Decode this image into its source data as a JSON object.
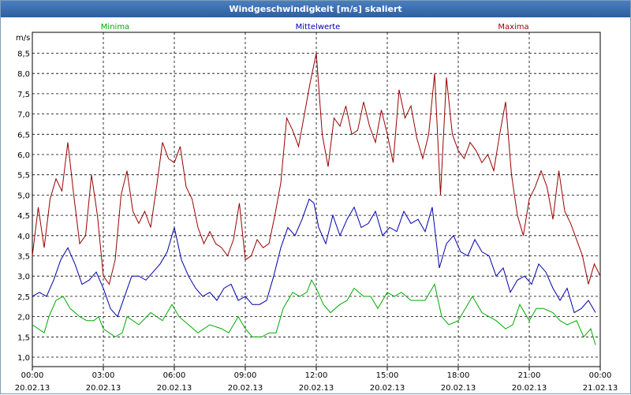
{
  "chart_data": {
    "type": "line",
    "title": "Windgeschwindigkeit [m/s] skaliert",
    "ylabel": "m/s",
    "ylim": [
      0.9,
      8.8
    ],
    "yticks": [
      "1,0",
      "1,5",
      "2,0",
      "2,5",
      "3,0",
      "3,5",
      "4,0",
      "4,5",
      "5,0",
      "5,5",
      "6,0",
      "6,5",
      "7,0",
      "7,5",
      "8,0",
      "8,5"
    ],
    "ytick_values": [
      1.0,
      1.5,
      2.0,
      2.5,
      3.0,
      3.5,
      4.0,
      4.5,
      5.0,
      5.5,
      6.0,
      6.5,
      7.0,
      7.5,
      8.0,
      8.5
    ],
    "xlim": [
      0,
      24
    ],
    "x_ticks": [
      {
        "time": "00:00",
        "date": "20.02.13"
      },
      {
        "time": "03:00",
        "date": "20.02.13"
      },
      {
        "time": "06:00",
        "date": "20.02.13"
      },
      {
        "time": "09:00",
        "date": "20.02.13"
      },
      {
        "time": "12:00",
        "date": "20.02.13"
      },
      {
        "time": "15:00",
        "date": "20.02.13"
      },
      {
        "time": "18:00",
        "date": "20.02.13"
      },
      {
        "time": "21:00",
        "date": "20.02.13"
      },
      {
        "time": "00:00",
        "date": "21.02.13"
      }
    ],
    "grid": true,
    "series": [
      {
        "name": "Minima",
        "color": "#00aa00",
        "x": [
          0.0,
          0.5,
          0.7,
          1.0,
          1.3,
          1.6,
          2.0,
          2.3,
          2.6,
          2.8,
          3.0,
          3.5,
          3.8,
          4.0,
          4.5,
          5.0,
          5.5,
          5.9,
          6.2,
          6.6,
          7.0,
          7.5,
          8.0,
          8.3,
          8.7,
          9.0,
          9.3,
          9.7,
          10.0,
          10.3,
          10.6,
          11.0,
          11.3,
          11.6,
          11.8,
          12.0,
          12.3,
          12.6,
          13.0,
          13.3,
          13.6,
          14.0,
          14.3,
          14.6,
          15.0,
          15.3,
          15.6,
          16.0,
          16.3,
          16.6,
          17.0,
          17.3,
          17.6,
          18.0,
          18.3,
          18.6,
          19.0,
          19.3,
          19.6,
          20.0,
          20.3,
          20.6,
          21.0,
          21.3,
          21.6,
          22.0,
          22.3,
          22.6,
          23.0,
          23.3,
          23.6,
          23.8
        ],
        "y": [
          1.8,
          1.6,
          2.0,
          2.4,
          2.5,
          2.2,
          2.0,
          1.9,
          1.9,
          2.0,
          1.7,
          1.5,
          1.6,
          2.0,
          1.8,
          2.1,
          1.9,
          2.3,
          2.0,
          1.8,
          1.6,
          1.8,
          1.7,
          1.6,
          2.0,
          1.7,
          1.5,
          1.5,
          1.6,
          1.6,
          2.2,
          2.6,
          2.5,
          2.6,
          2.9,
          2.7,
          2.3,
          2.1,
          2.3,
          2.4,
          2.7,
          2.5,
          2.5,
          2.2,
          2.6,
          2.5,
          2.6,
          2.4,
          2.4,
          2.4,
          2.8,
          2.0,
          1.8,
          1.9,
          2.2,
          2.5,
          2.1,
          2.0,
          1.9,
          1.7,
          1.8,
          2.3,
          1.9,
          2.2,
          2.2,
          2.1,
          1.9,
          1.8,
          1.9,
          1.5,
          1.7,
          1.3
        ]
      },
      {
        "name": "Mittelwerte",
        "color": "#0000aa",
        "x": [
          0.0,
          0.3,
          0.6,
          0.9,
          1.2,
          1.5,
          1.8,
          2.1,
          2.4,
          2.7,
          3.0,
          3.3,
          3.6,
          3.9,
          4.2,
          4.5,
          4.8,
          5.1,
          5.4,
          5.7,
          6.0,
          6.3,
          6.6,
          6.9,
          7.2,
          7.5,
          7.8,
          8.1,
          8.4,
          8.7,
          9.0,
          9.3,
          9.6,
          9.9,
          10.2,
          10.5,
          10.8,
          11.1,
          11.4,
          11.7,
          11.9,
          12.1,
          12.4,
          12.7,
          13.0,
          13.3,
          13.6,
          13.9,
          14.2,
          14.5,
          14.8,
          15.1,
          15.4,
          15.7,
          16.0,
          16.3,
          16.6,
          16.9,
          17.2,
          17.5,
          17.8,
          18.1,
          18.4,
          18.7,
          19.0,
          19.3,
          19.6,
          19.9,
          20.2,
          20.5,
          20.8,
          21.1,
          21.4,
          21.7,
          22.0,
          22.3,
          22.6,
          22.9,
          23.2,
          23.5,
          23.8
        ],
        "y": [
          2.5,
          2.6,
          2.5,
          2.9,
          3.4,
          3.7,
          3.3,
          2.8,
          2.9,
          3.1,
          2.7,
          2.2,
          2.0,
          2.5,
          3.0,
          3.0,
          2.9,
          3.1,
          3.3,
          3.6,
          4.2,
          3.4,
          3.0,
          2.7,
          2.5,
          2.6,
          2.4,
          2.7,
          2.8,
          2.4,
          2.5,
          2.3,
          2.3,
          2.4,
          3.0,
          3.7,
          4.2,
          4.0,
          4.4,
          4.9,
          4.8,
          4.2,
          3.8,
          4.5,
          4.0,
          4.4,
          4.7,
          4.2,
          4.3,
          4.6,
          4.0,
          4.2,
          4.1,
          4.6,
          4.3,
          4.4,
          4.1,
          4.7,
          3.2,
          3.8,
          4.0,
          3.6,
          3.5,
          3.9,
          3.6,
          3.5,
          3.0,
          3.2,
          2.6,
          2.9,
          3.0,
          2.8,
          3.3,
          3.1,
          2.7,
          2.4,
          2.7,
          2.1,
          2.2,
          2.4,
          2.1
        ]
      },
      {
        "name": "Maxima",
        "color": "#990000",
        "x": [
          0.0,
          0.25,
          0.5,
          0.75,
          1.0,
          1.25,
          1.5,
          1.75,
          2.0,
          2.25,
          2.5,
          2.75,
          3.0,
          3.25,
          3.5,
          3.75,
          4.0,
          4.25,
          4.5,
          4.75,
          5.0,
          5.25,
          5.5,
          5.75,
          6.0,
          6.25,
          6.5,
          6.75,
          7.0,
          7.25,
          7.5,
          7.75,
          8.0,
          8.25,
          8.5,
          8.75,
          9.0,
          9.25,
          9.5,
          9.75,
          10.0,
          10.25,
          10.5,
          10.75,
          11.0,
          11.25,
          11.5,
          11.75,
          12.0,
          12.25,
          12.5,
          12.75,
          13.0,
          13.25,
          13.5,
          13.75,
          14.0,
          14.25,
          14.5,
          14.75,
          15.0,
          15.25,
          15.5,
          15.75,
          16.0,
          16.25,
          16.5,
          16.75,
          17.0,
          17.25,
          17.5,
          17.75,
          18.0,
          18.25,
          18.5,
          18.75,
          19.0,
          19.25,
          19.5,
          19.75,
          20.0,
          20.25,
          20.5,
          20.75,
          21.0,
          21.25,
          21.5,
          21.75,
          22.0,
          22.25,
          22.5,
          22.75,
          23.0,
          23.25,
          23.5,
          23.75,
          24.0
        ],
        "y": [
          3.5,
          4.7,
          3.7,
          4.9,
          5.4,
          5.1,
          6.3,
          5.0,
          3.8,
          4.0,
          5.5,
          4.5,
          3.0,
          2.8,
          3.4,
          5.0,
          5.6,
          4.6,
          4.3,
          4.6,
          4.2,
          5.2,
          6.3,
          5.9,
          5.8,
          6.2,
          5.2,
          4.9,
          4.2,
          3.8,
          4.1,
          3.8,
          3.7,
          3.5,
          3.9,
          4.8,
          3.4,
          3.5,
          3.9,
          3.7,
          3.8,
          4.5,
          5.3,
          6.9,
          6.6,
          6.2,
          7.0,
          7.8,
          8.5,
          6.5,
          5.7,
          6.9,
          6.7,
          7.2,
          6.5,
          6.6,
          7.3,
          6.7,
          6.3,
          7.1,
          6.5,
          5.8,
          7.6,
          6.9,
          7.2,
          6.4,
          5.9,
          6.5,
          8.0,
          5.0,
          7.9,
          6.5,
          6.1,
          5.9,
          6.3,
          6.1,
          5.8,
          6.0,
          5.6,
          6.5,
          7.3,
          5.5,
          4.5,
          4.0,
          4.9,
          5.2,
          5.6,
          5.2,
          4.4,
          5.6,
          4.6,
          4.3,
          3.9,
          3.5,
          2.8,
          3.3,
          3.0
        ]
      }
    ]
  }
}
